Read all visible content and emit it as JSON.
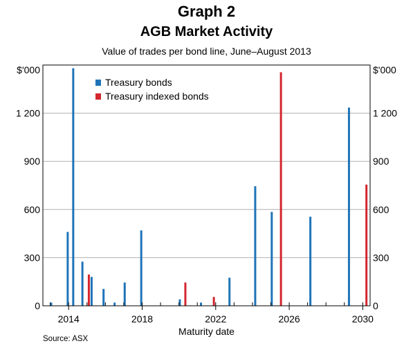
{
  "header": {
    "graph_label": "Graph 2",
    "title": "AGB Market Activity",
    "subtitle": "Value of trades per bond line, June–August 2013"
  },
  "source": "Source: ASX",
  "chart_data": {
    "type": "bar",
    "xlabel": "Maturity date",
    "ylabel_left": "$'000",
    "ylabel_right": "$'000",
    "xlim": [
      2012.6,
      2030.4
    ],
    "ylim": [
      0,
      1500
    ],
    "x_ticks": [
      2014,
      2018,
      2022,
      2026,
      2030
    ],
    "x_minor_ticks": [
      2013,
      2014,
      2015,
      2016,
      2017,
      2018,
      2019,
      2020,
      2021,
      2022,
      2023,
      2024,
      2025,
      2026,
      2027,
      2028,
      2029,
      2030
    ],
    "y_ticks": [
      0,
      300,
      600,
      900,
      1200
    ],
    "y_tick_labels": [
      "0",
      "300",
      "600",
      "900",
      "1 200"
    ],
    "grid": true,
    "legend_position": "top-left",
    "colors": {
      "Treasury bonds": "#1f74b8",
      "Treasury indexed bonds": "#d3262f"
    },
    "series": [
      {
        "name": "Treasury bonds",
        "points": [
          {
            "x": 2013.05,
            "y": 20
          },
          {
            "x": 2013.95,
            "y": 460
          },
          {
            "x": 2014.25,
            "y": 1480
          },
          {
            "x": 2014.75,
            "y": 275
          },
          {
            "x": 2015.25,
            "y": 180
          },
          {
            "x": 2015.9,
            "y": 105
          },
          {
            "x": 2016.5,
            "y": 20
          },
          {
            "x": 2017.05,
            "y": 145
          },
          {
            "x": 2017.95,
            "y": 470
          },
          {
            "x": 2020.05,
            "y": 40
          },
          {
            "x": 2021.2,
            "y": 20
          },
          {
            "x": 2022.75,
            "y": 175
          },
          {
            "x": 2024.15,
            "y": 745
          },
          {
            "x": 2025.05,
            "y": 585
          },
          {
            "x": 2027.15,
            "y": 555
          },
          {
            "x": 2029.25,
            "y": 1235
          }
        ]
      },
      {
        "name": "Treasury indexed bonds",
        "points": [
          {
            "x": 2015.1,
            "y": 195
          },
          {
            "x": 2020.35,
            "y": 145
          },
          {
            "x": 2021.9,
            "y": 55
          },
          {
            "x": 2025.55,
            "y": 1455
          },
          {
            "x": 2030.2,
            "y": 755
          }
        ]
      }
    ]
  }
}
